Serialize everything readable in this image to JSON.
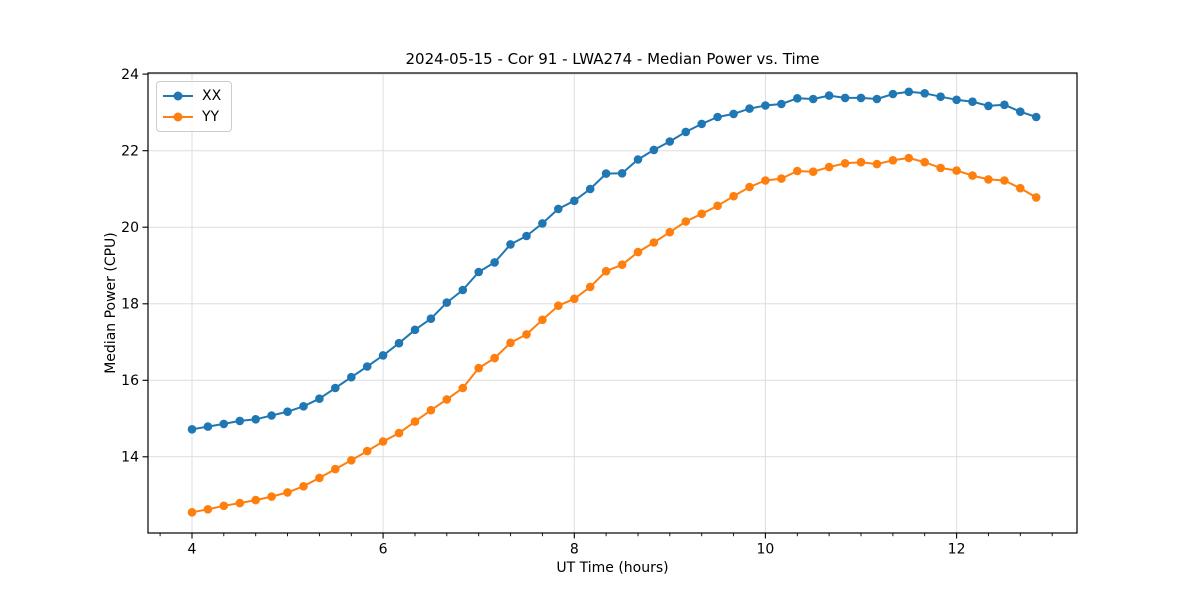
{
  "chart_data": {
    "type": "line",
    "title": "2024-05-15 - Cor 91 - LWA274 - Median Power vs. Time",
    "xlabel": "UT Time (hours)",
    "ylabel": "Median Power (CPU)",
    "xlim": [
      3.54,
      13.26
    ],
    "ylim": [
      12.01,
      24.03
    ],
    "xticks": [
      4,
      6,
      8,
      10,
      12
    ],
    "yticks": [
      14,
      16,
      18,
      20,
      22,
      24
    ],
    "x_minor_tick_step": 0.3333,
    "grid": true,
    "grid_color": "#dedede",
    "legend_position": "upper left",
    "x": [
      4.0,
      4.1667,
      4.3333,
      4.5,
      4.6667,
      4.8333,
      5.0,
      5.1667,
      5.3333,
      5.5,
      5.6667,
      5.8333,
      6.0,
      6.1667,
      6.3333,
      6.5,
      6.6667,
      6.8333,
      7.0,
      7.1667,
      7.3333,
      7.5,
      7.6667,
      7.8333,
      8.0,
      8.1667,
      8.3333,
      8.5,
      8.6667,
      8.8333,
      9.0,
      9.1667,
      9.3333,
      9.5,
      9.6667,
      9.8333,
      10.0,
      10.1667,
      10.3333,
      10.5,
      10.6667,
      10.8333,
      11.0,
      11.1667,
      11.3333,
      11.5,
      11.6667,
      11.8333,
      12.0,
      12.1667,
      12.3333,
      12.5,
      12.6667,
      12.8333
    ],
    "series": [
      {
        "name": "XX",
        "color": "#1f77b4",
        "values": [
          14.72,
          14.79,
          14.86,
          14.94,
          14.98,
          15.08,
          15.18,
          15.32,
          15.52,
          15.8,
          16.08,
          16.36,
          16.65,
          16.97,
          17.32,
          17.61,
          18.03,
          18.36,
          18.83,
          19.08,
          19.55,
          19.77,
          20.1,
          20.48,
          20.69,
          21.0,
          21.4,
          21.41,
          21.77,
          22.02,
          22.24,
          22.49,
          22.7,
          22.88,
          22.96,
          23.1,
          23.18,
          23.22,
          23.37,
          23.35,
          23.44,
          23.38,
          23.38,
          23.35,
          23.48,
          23.54,
          23.5,
          23.41,
          23.33,
          23.28,
          23.17,
          23.2,
          23.02,
          22.88
        ]
      },
      {
        "name": "YY",
        "color": "#ff7f0e",
        "values": [
          12.55,
          12.63,
          12.72,
          12.79,
          12.87,
          12.96,
          13.07,
          13.23,
          13.45,
          13.68,
          13.91,
          14.15,
          14.4,
          14.62,
          14.92,
          15.22,
          15.5,
          15.8,
          16.32,
          16.58,
          16.98,
          17.2,
          17.58,
          17.95,
          18.13,
          18.44,
          18.85,
          19.02,
          19.35,
          19.6,
          19.87,
          20.15,
          20.35,
          20.56,
          20.81,
          21.05,
          21.22,
          21.27,
          21.47,
          21.45,
          21.57,
          21.67,
          21.7,
          21.65,
          21.75,
          21.81,
          21.7,
          21.55,
          21.48,
          21.35,
          21.25,
          21.22,
          21.02,
          20.78
        ]
      }
    ]
  }
}
